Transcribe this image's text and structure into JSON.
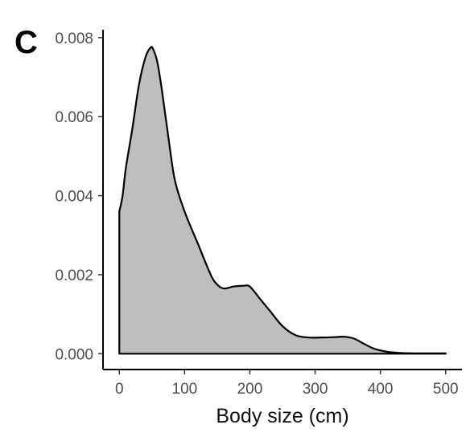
{
  "colors": {
    "fill": "#bebebe",
    "line": "#000000",
    "axis": "#000000",
    "tick_text": "#4d4d4d"
  },
  "chart_data": {
    "type": "area",
    "panel_label": "C",
    "title": "",
    "xlabel": "Body size (cm)",
    "ylabel": "",
    "xlim": [
      -25,
      525
    ],
    "ylim": [
      -0.0004,
      0.0082
    ],
    "x_ticks": [
      0,
      100,
      200,
      300,
      400,
      500
    ],
    "x_tick_labels": [
      "0",
      "100",
      "200",
      "300",
      "400",
      "500"
    ],
    "y_ticks": [
      0,
      0.002,
      0.004,
      0.006,
      0.008
    ],
    "y_tick_labels": [
      "0.000",
      "0.002",
      "0.004",
      "0.006",
      "0.008"
    ],
    "grid": false,
    "legend": "none",
    "series": [
      {
        "x": [
          0,
          5,
          10,
          20,
          30,
          40,
          48,
          52,
          58,
          65,
          75,
          85,
          100,
          120,
          140,
          150,
          160,
          175,
          190,
          200,
          215,
          230,
          250,
          270,
          290,
          310,
          330,
          345,
          360,
          375,
          390,
          410,
          430,
          450,
          470,
          500
        ],
        "y": [
          0.0036,
          0.004,
          0.0047,
          0.0057,
          0.0068,
          0.0075,
          0.00775,
          0.0077,
          0.0074,
          0.0067,
          0.0055,
          0.0044,
          0.0036,
          0.0028,
          0.002,
          0.00175,
          0.00165,
          0.0017,
          0.00172,
          0.0017,
          0.0014,
          0.0011,
          0.0007,
          0.00047,
          0.00041,
          0.00041,
          0.00042,
          0.00043,
          0.00038,
          0.00025,
          0.00013,
          5e-05,
          2e-05,
          1e-05,
          1e-05,
          1e-05
        ]
      }
    ]
  }
}
